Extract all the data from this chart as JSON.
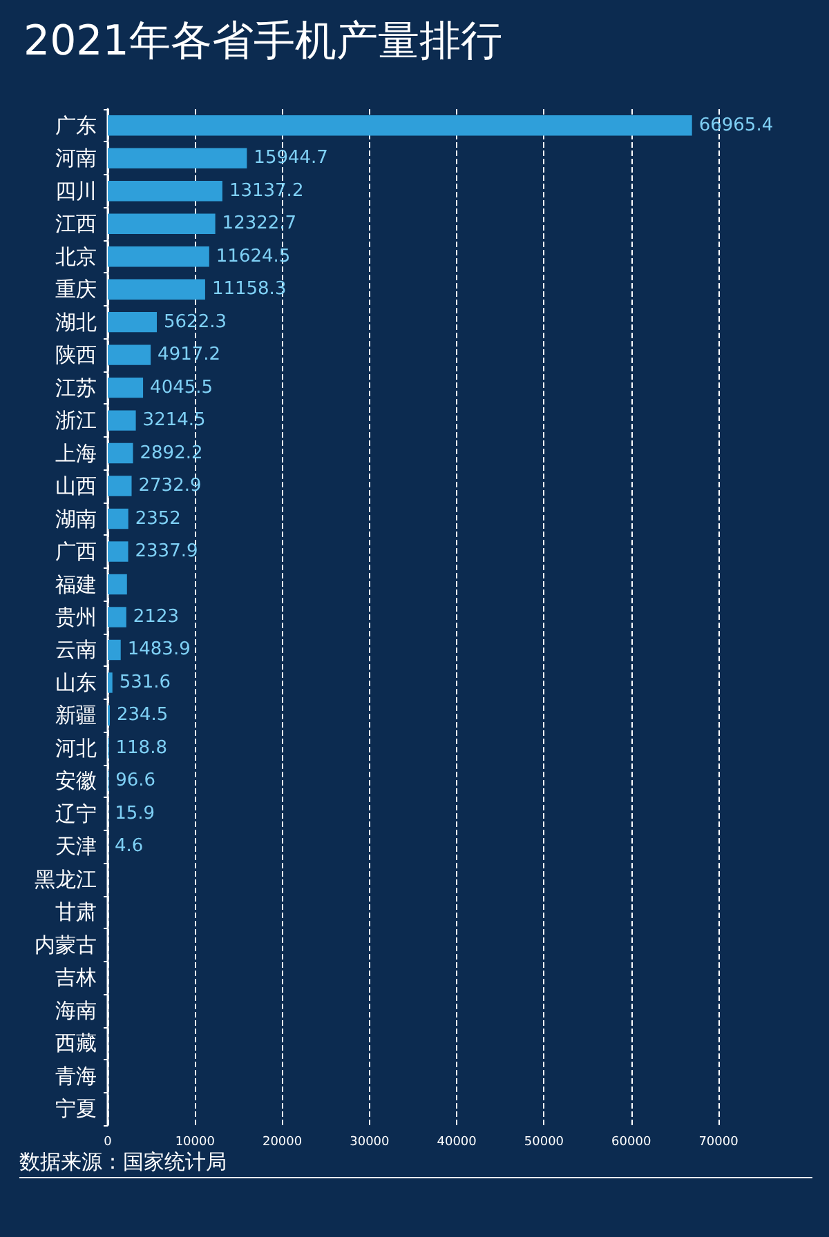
{
  "chart_data": {
    "type": "bar",
    "orientation": "horizontal",
    "title": "2021年各省手机产量排行",
    "annotations": [
      "数据来源：国家统计局"
    ],
    "categories": [
      "广东",
      "河南",
      "四川",
      "江西",
      "北京",
      "重庆",
      "湖北",
      "陕西",
      "江苏",
      "浙江",
      "上海",
      "山西",
      "湖南",
      "广西",
      "福建",
      "贵州",
      "云南",
      "山东",
      "新疆",
      "河北",
      "安徽",
      "辽宁",
      "天津",
      "黑龙江",
      "甘肃",
      "内蒙古",
      "吉林",
      "海南",
      "西藏",
      "青海",
      "宁夏"
    ],
    "values": [
      66965.4,
      15944.7,
      13137.2,
      12322.7,
      11624.5,
      11158.3,
      5622.3,
      4917.2,
      4045.5,
      3214.5,
      2892.2,
      2732.9,
      2352,
      2337.9,
      2200,
      2123,
      1483.9,
      531.6,
      234.5,
      118.8,
      96.6,
      15.9,
      4.6,
      0,
      0,
      0,
      0,
      0,
      0,
      0,
      0
    ],
    "value_labels": [
      "66965.4",
      "15944.7",
      "13137.2",
      "12322.7",
      "11624.5",
      "11158.3",
      "5622.3",
      "4917.2",
      "4045.5",
      "3214.5",
      "2892.2",
      "2732.9",
      "2352",
      "2337.9",
      null,
      "2123",
      "1483.9",
      "531.6",
      "234.5",
      "118.8",
      "96.6",
      "15.9",
      "4.6",
      null,
      null,
      null,
      null,
      null,
      null,
      null,
      null
    ],
    "color": "#2f9fda",
    "xlim": [
      0,
      70000
    ],
    "xticks": [
      0,
      10000,
      20000,
      30000,
      40000,
      50000,
      60000,
      70000
    ],
    "grid": "x"
  }
}
